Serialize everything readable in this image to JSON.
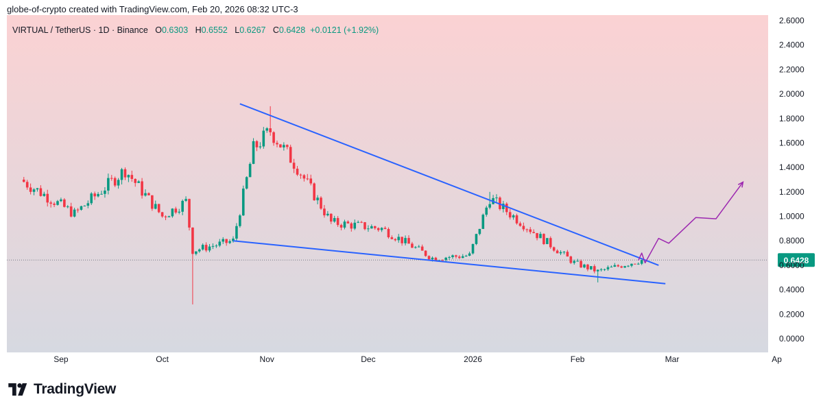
{
  "header": {
    "attribution": "globe-of-crypto created with TradingView.com, Feb 20, 2026 08:32 UTC-3"
  },
  "legend": {
    "symbol": "VIRTUAL / TetherUS · 1D · Binance",
    "o_label": "O",
    "o": "0.6303",
    "h_label": "H",
    "h": "0.6552",
    "l_label": "L",
    "l": "0.6267",
    "c_label": "C",
    "c": "0.6428",
    "change": "+0.0121 (+1.92%)"
  },
  "brand": {
    "name": "TradingView"
  },
  "colors": {
    "up": "#089981",
    "down": "#f23645",
    "trendline": "#2962ff",
    "projection": "#9c27b0",
    "bg_top": "#fbd2d3",
    "bg_bottom": "#d6d9e1"
  },
  "chart_data": {
    "type": "candlestick",
    "title": "VIRTUAL / TetherUS · 1D · Binance",
    "x_ticks": [
      {
        "label": "Sep",
        "date": "2025-09-01"
      },
      {
        "label": "Oct",
        "date": "2025-10-01"
      },
      {
        "label": "Nov",
        "date": "2025-11-01"
      },
      {
        "label": "Dec",
        "date": "2025-12-01"
      },
      {
        "label": "2026",
        "date": "2026-01-01"
      },
      {
        "label": "Feb",
        "date": "2026-02-01"
      },
      {
        "label": "Mar",
        "date": "2026-03-01"
      },
      {
        "label": "Ap",
        "date": "2026-04-01"
      }
    ],
    "y_ticks": [
      "2.6000",
      "2.4000",
      "2.2000",
      "2.0000",
      "1.8000",
      "1.6000",
      "1.4000",
      "1.2000",
      "1.0000",
      "0.8000",
      "0.6000",
      "0.4000",
      "0.2000",
      "0.0000"
    ],
    "ylim": [
      0,
      2.6
    ],
    "last_price": 0.6428,
    "last_price_label": "0.6428",
    "key_points": [
      {
        "date": "2025-08-20",
        "close": 1.3
      },
      {
        "date": "2025-09-05",
        "close": 1.02
      },
      {
        "date": "2025-09-20",
        "close": 1.38
      },
      {
        "date": "2025-10-01",
        "close": 1.0
      },
      {
        "date": "2025-10-08",
        "close": 1.12
      },
      {
        "date": "2025-10-10",
        "low": 0.28,
        "close": 0.72
      },
      {
        "date": "2025-10-22",
        "close": 0.8
      },
      {
        "date": "2025-10-28",
        "close": 1.55
      },
      {
        "date": "2025-11-02",
        "high": 1.9,
        "close": 1.7
      },
      {
        "date": "2025-11-10",
        "close": 1.4
      },
      {
        "date": "2025-11-20",
        "close": 0.95
      },
      {
        "date": "2025-12-05",
        "close": 0.9
      },
      {
        "date": "2025-12-20",
        "close": 0.66
      },
      {
        "date": "2025-12-31",
        "close": 0.68
      },
      {
        "date": "2026-01-06",
        "high": 1.2,
        "close": 1.15
      },
      {
        "date": "2026-01-20",
        "close": 0.85
      },
      {
        "date": "2026-01-31",
        "close": 0.62
      },
      {
        "date": "2026-02-07",
        "low": 0.46,
        "close": 0.55
      },
      {
        "date": "2026-02-20",
        "close": 0.6428
      }
    ],
    "annotations": {
      "upper_trendline": [
        {
          "date": "2025-10-24",
          "value": 1.92
        },
        {
          "date": "2026-02-25",
          "value": 0.6
        }
      ],
      "lower_trendline": [
        {
          "date": "2025-10-22",
          "value": 0.8
        },
        {
          "date": "2026-02-27",
          "value": 0.45
        }
      ],
      "projection_path": [
        {
          "date": "2026-02-19",
          "value": 0.64
        },
        {
          "date": "2026-02-20",
          "value": 0.7
        },
        {
          "date": "2026-02-21",
          "value": 0.62
        },
        {
          "date": "2026-02-25",
          "value": 0.82
        },
        {
          "date": "2026-02-28",
          "value": 0.78
        },
        {
          "date": "2026-03-08",
          "value": 0.99
        },
        {
          "date": "2026-03-14",
          "value": 0.98
        },
        {
          "date": "2026-03-22",
          "value": 1.28
        }
      ],
      "price_line": 0.6428
    }
  }
}
